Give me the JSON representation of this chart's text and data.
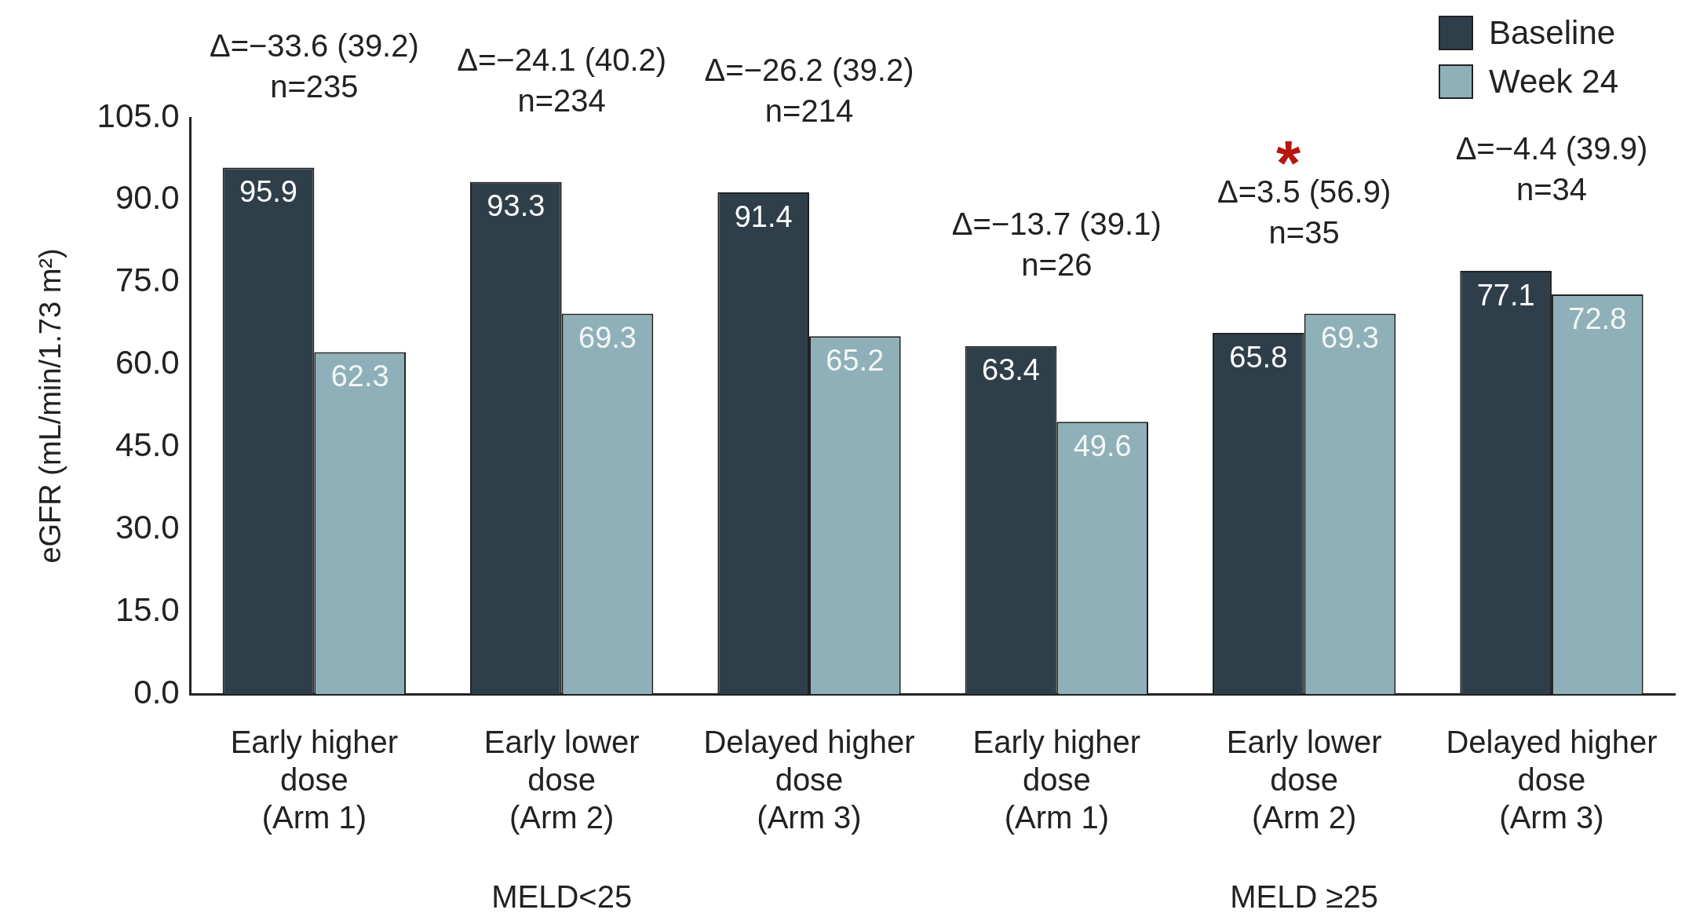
{
  "chart_data": {
    "type": "bar",
    "ylabel": "eGFR (mL/min/1.73 m²)",
    "categories": [
      "Early higher dose (Arm 1)",
      "Early lower dose (Arm 2)",
      "Delayed higher dose (Arm 3)",
      "Early higher dose (Arm 1)",
      "Early lower dose (Arm 2)",
      "Delayed higher dose (Arm 3)"
    ],
    "series": [
      {
        "name": "Baseline",
        "color": "#2e3f4a",
        "values": [
          95.9,
          93.3,
          91.4,
          63.4,
          65.8,
          77.1
        ]
      },
      {
        "name": "Week 24",
        "color": "#8fb0b8",
        "values": [
          62.3,
          69.3,
          65.2,
          49.6,
          69.3,
          72.8
        ]
      }
    ],
    "ylim": [
      0,
      105
    ],
    "yticks": [
      {
        "value": 0,
        "label": "0.0"
      },
      {
        "value": 15,
        "label": "15.0"
      },
      {
        "value": 30,
        "label": "30.0"
      },
      {
        "value": 45,
        "label": "45.0"
      },
      {
        "value": 60,
        "label": "60.0"
      },
      {
        "value": 75,
        "label": "75.0"
      },
      {
        "value": 90,
        "label": "90.0"
      },
      {
        "value": 105,
        "label": "105.0"
      }
    ],
    "data_labels": true,
    "grid": false,
    "legend": "top right",
    "annotations": [
      "Δ=−33.6 (39.2)\nn=235",
      "Δ=−24.1 (40.2)\nn=234",
      "Δ=−26.2 (39.2)\nn=214",
      "Δ=−13.7 (39.1)\nn=26",
      "Δ=3.5 (56.9)\nn=35",
      "Δ=−4.4 (39.9)\nn=34",
      "MELD<25",
      "MELD ≥25",
      "*"
    ]
  }
}
